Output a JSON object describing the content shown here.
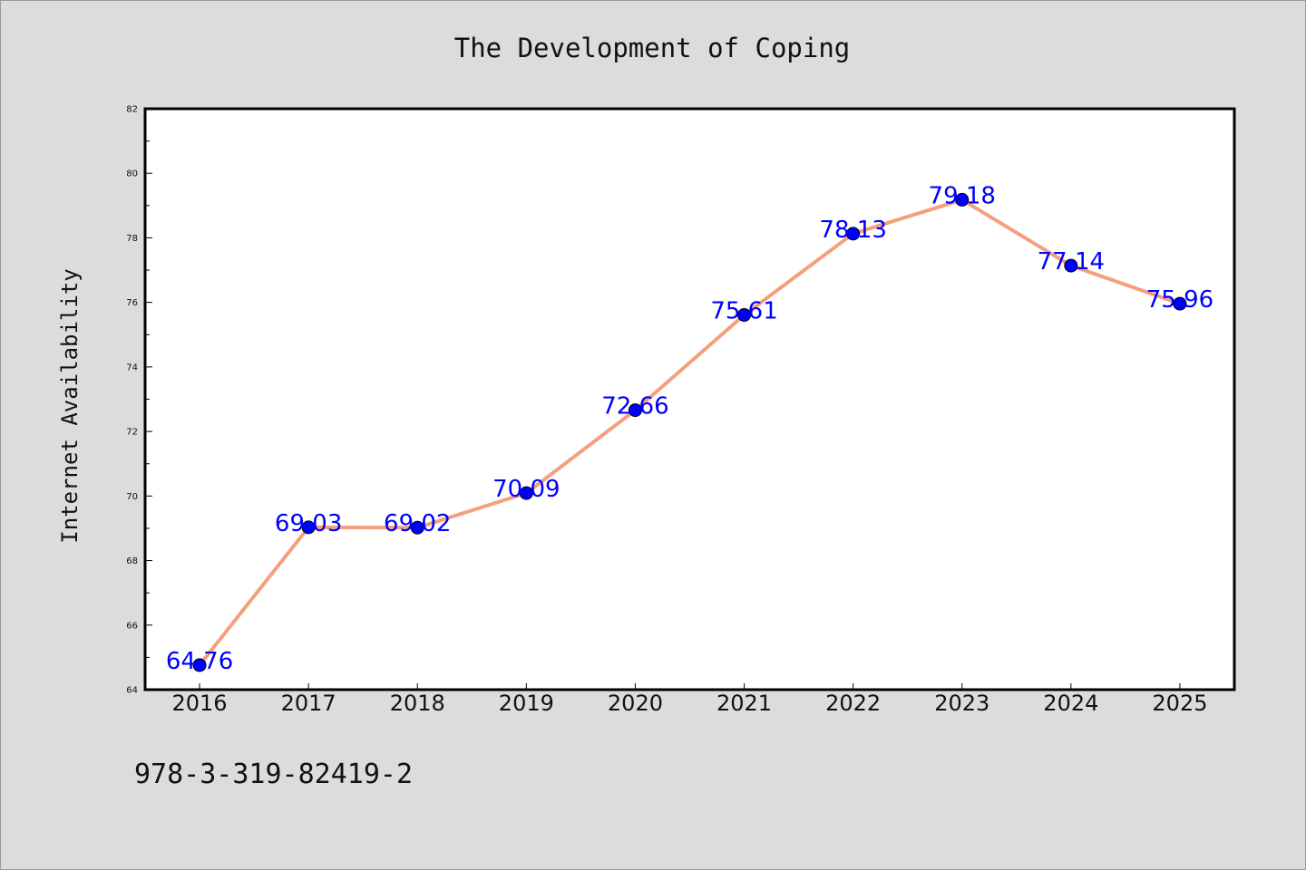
{
  "chart_data": {
    "type": "line",
    "title": "The Development of Coping",
    "xlabel": "",
    "ylabel": "Internet Availability",
    "categories": [
      "2016",
      "2017",
      "2018",
      "2019",
      "2020",
      "2021",
      "2022",
      "2023",
      "2024",
      "2025"
    ],
    "series": [
      {
        "values": [
          64.76,
          69.03,
          69.02,
          70.09,
          72.66,
          75.61,
          78.13,
          79.18,
          77.14,
          75.96
        ],
        "data_labels": [
          "64.76",
          "69.03",
          "69.02",
          "70.09",
          "72.66",
          "75.61",
          "78.13",
          "79.18",
          "77.14",
          "75.96"
        ]
      }
    ],
    "ylim": [
      64,
      82
    ],
    "yticks": [
      "64",
      "66",
      "68",
      "70",
      "72",
      "74",
      "76",
      "78",
      "80",
      "82"
    ],
    "grid": false,
    "line_color": "#f4a07c",
    "marker_color": "#0000ff",
    "label_color": "#0000ff",
    "background_color": "#dcdcdc",
    "plot_background_color": "#ffffff"
  },
  "footnote": "978-3-319-82419-2"
}
